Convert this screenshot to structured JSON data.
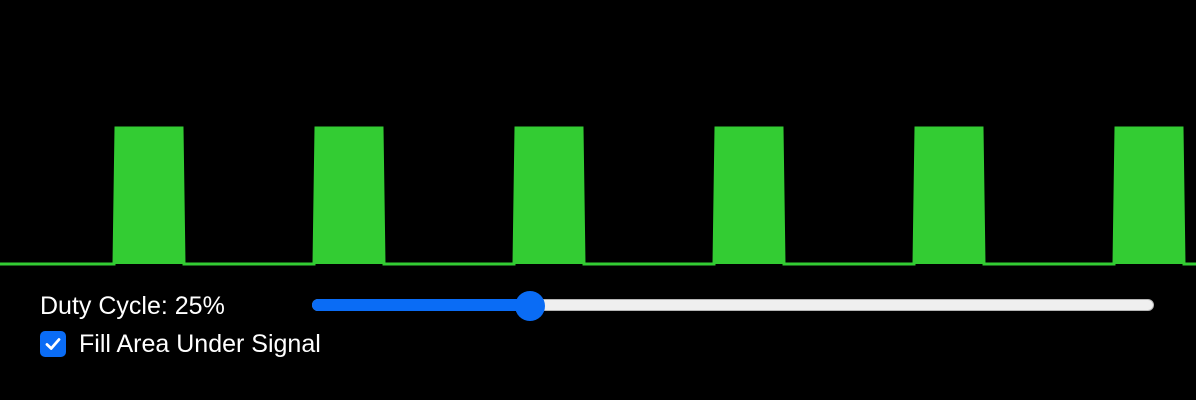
{
  "signal": {
    "wave": "square",
    "cycles_shown": 6,
    "duty_cycle_percent": 25,
    "fill_enabled": true,
    "signal_color": "#33cc33",
    "background_color": "#000000"
  },
  "controls": {
    "duty_label_prefix": "Duty Cycle: ",
    "duty_value_text": "25%",
    "slider": {
      "min": 0,
      "max": 100,
      "value": 25,
      "accent_color": "#0a6cf5"
    },
    "fill_checkbox": {
      "checked": true,
      "label": "Fill Area Under Signal"
    }
  }
}
